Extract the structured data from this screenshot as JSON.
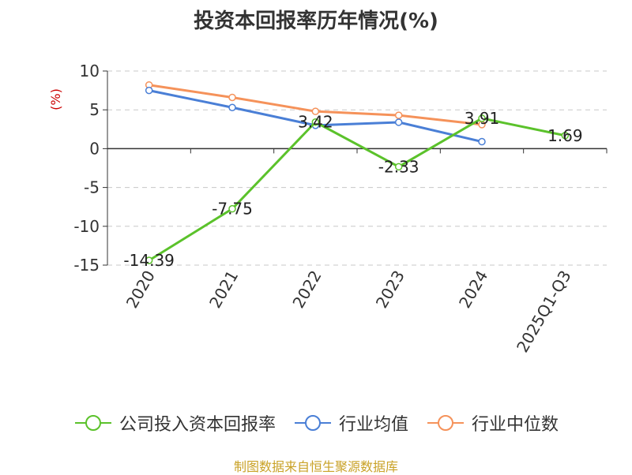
{
  "chart_data": {
    "type": "line",
    "title": "投资本回报率历年情况(%)",
    "ylabel": "(%)",
    "xlabel": "",
    "categories": [
      "2020",
      "2021",
      "2022",
      "2023",
      "2024",
      "2025Q1-Q3"
    ],
    "ylim": [
      -15,
      10
    ],
    "yticks": [
      10,
      5,
      0,
      -5,
      -10,
      -15
    ],
    "grid": "horizontal-dashed",
    "legend_position": "bottom",
    "series": [
      {
        "name": "公司投入资本回报率",
        "color": "#5bc22b",
        "values": [
          -14.39,
          -7.75,
          3.42,
          -2.33,
          3.91,
          1.69
        ],
        "labels": [
          "-14.39",
          "-7.75",
          "3.42",
          "-2.33",
          "3.91",
          "1.69"
        ]
      },
      {
        "name": "行业均值",
        "color": "#4a7fd6",
        "values": [
          7.5,
          5.3,
          3.0,
          3.4,
          0.9,
          null
        ]
      },
      {
        "name": "行业中位数",
        "color": "#f5925a",
        "values": [
          8.2,
          6.6,
          4.8,
          4.3,
          3.1,
          null
        ]
      }
    ]
  },
  "footer": "制图数据来自恒生聚源数据库"
}
